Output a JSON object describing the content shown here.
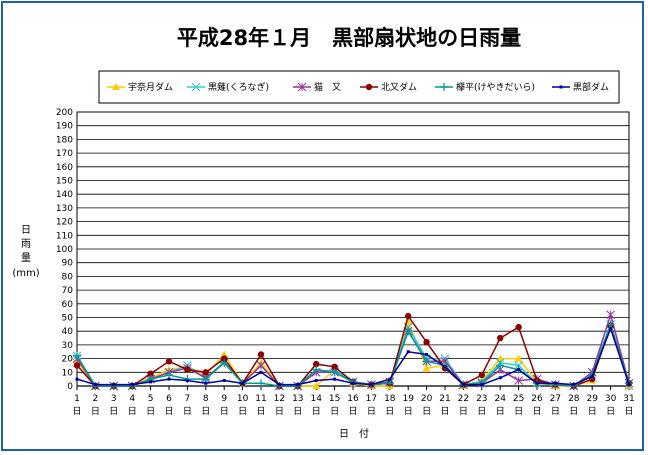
{
  "chart_data": {
    "type": "line",
    "title": "平成28年１月　黒部扇状地の日雨量",
    "ylabel": [
      "日",
      "雨",
      "量"
    ],
    "yunit": "(mm)",
    "xlabel": "日　付",
    "ylim": [
      0,
      200
    ],
    "ytick_step": 10,
    "grid": true,
    "legend_position": "top",
    "x": [
      1,
      2,
      3,
      4,
      5,
      6,
      7,
      8,
      9,
      10,
      11,
      12,
      13,
      14,
      15,
      16,
      17,
      18,
      19,
      20,
      21,
      22,
      23,
      24,
      25,
      26,
      27,
      28,
      29,
      30,
      31
    ],
    "x_day_suffix": "日",
    "series": [
      {
        "name": "宇奈月ダム",
        "color": "#ffcc00",
        "marker": "triangle",
        "values": [
          18,
          0,
          0,
          0,
          6,
          12,
          14,
          8,
          23,
          2,
          17,
          0,
          0,
          0,
          12,
          2,
          0,
          0,
          47,
          13,
          15,
          0,
          4,
          20,
          20,
          3,
          0,
          0,
          4,
          45,
          0
        ]
      },
      {
        "name": "黒薙(くろなぎ)",
        "color": "#33cccc",
        "marker": "x",
        "values": [
          22,
          0,
          0,
          0,
          5,
          10,
          15,
          5,
          18,
          2,
          15,
          0,
          0,
          10,
          12,
          3,
          1,
          3,
          43,
          20,
          20,
          1,
          3,
          17,
          15,
          2,
          1,
          0,
          10,
          45,
          0
        ]
      },
      {
        "name": "猫　又",
        "color": "#993399",
        "marker": "star",
        "values": [
          20,
          0,
          0,
          0,
          5,
          10,
          13,
          6,
          17,
          2,
          15,
          0,
          0,
          10,
          10,
          3,
          1,
          3,
          40,
          18,
          18,
          1,
          2,
          12,
          4,
          5,
          1,
          0,
          10,
          52,
          2
        ]
      },
      {
        "name": "北又ダム",
        "color": "#8b0000",
        "marker": "circle",
        "values": [
          15,
          0,
          0,
          0,
          9,
          18,
          12,
          10,
          20,
          2,
          23,
          0,
          0,
          16,
          14,
          3,
          1,
          2,
          51,
          32,
          13,
          1,
          8,
          35,
          43,
          4,
          1,
          0,
          5,
          44,
          2
        ]
      },
      {
        "name": "欅平(けやきだいら)",
        "color": "#009999",
        "marker": "plus",
        "values": [
          22,
          0,
          0,
          0,
          5,
          8,
          5,
          5,
          17,
          2,
          2,
          0,
          0,
          12,
          10,
          3,
          1,
          2,
          40,
          18,
          15,
          1,
          2,
          15,
          12,
          2,
          1,
          0,
          8,
          45,
          2
        ]
      },
      {
        "name": "黒部ダム",
        "color": "#000099",
        "marker": "dot",
        "values": [
          5,
          1,
          1,
          1,
          3,
          5,
          4,
          2,
          4,
          2,
          10,
          1,
          1,
          4,
          5,
          2,
          1,
          5,
          25,
          23,
          14,
          1,
          1,
          6,
          12,
          2,
          2,
          1,
          7,
          42,
          1
        ]
      }
    ]
  }
}
